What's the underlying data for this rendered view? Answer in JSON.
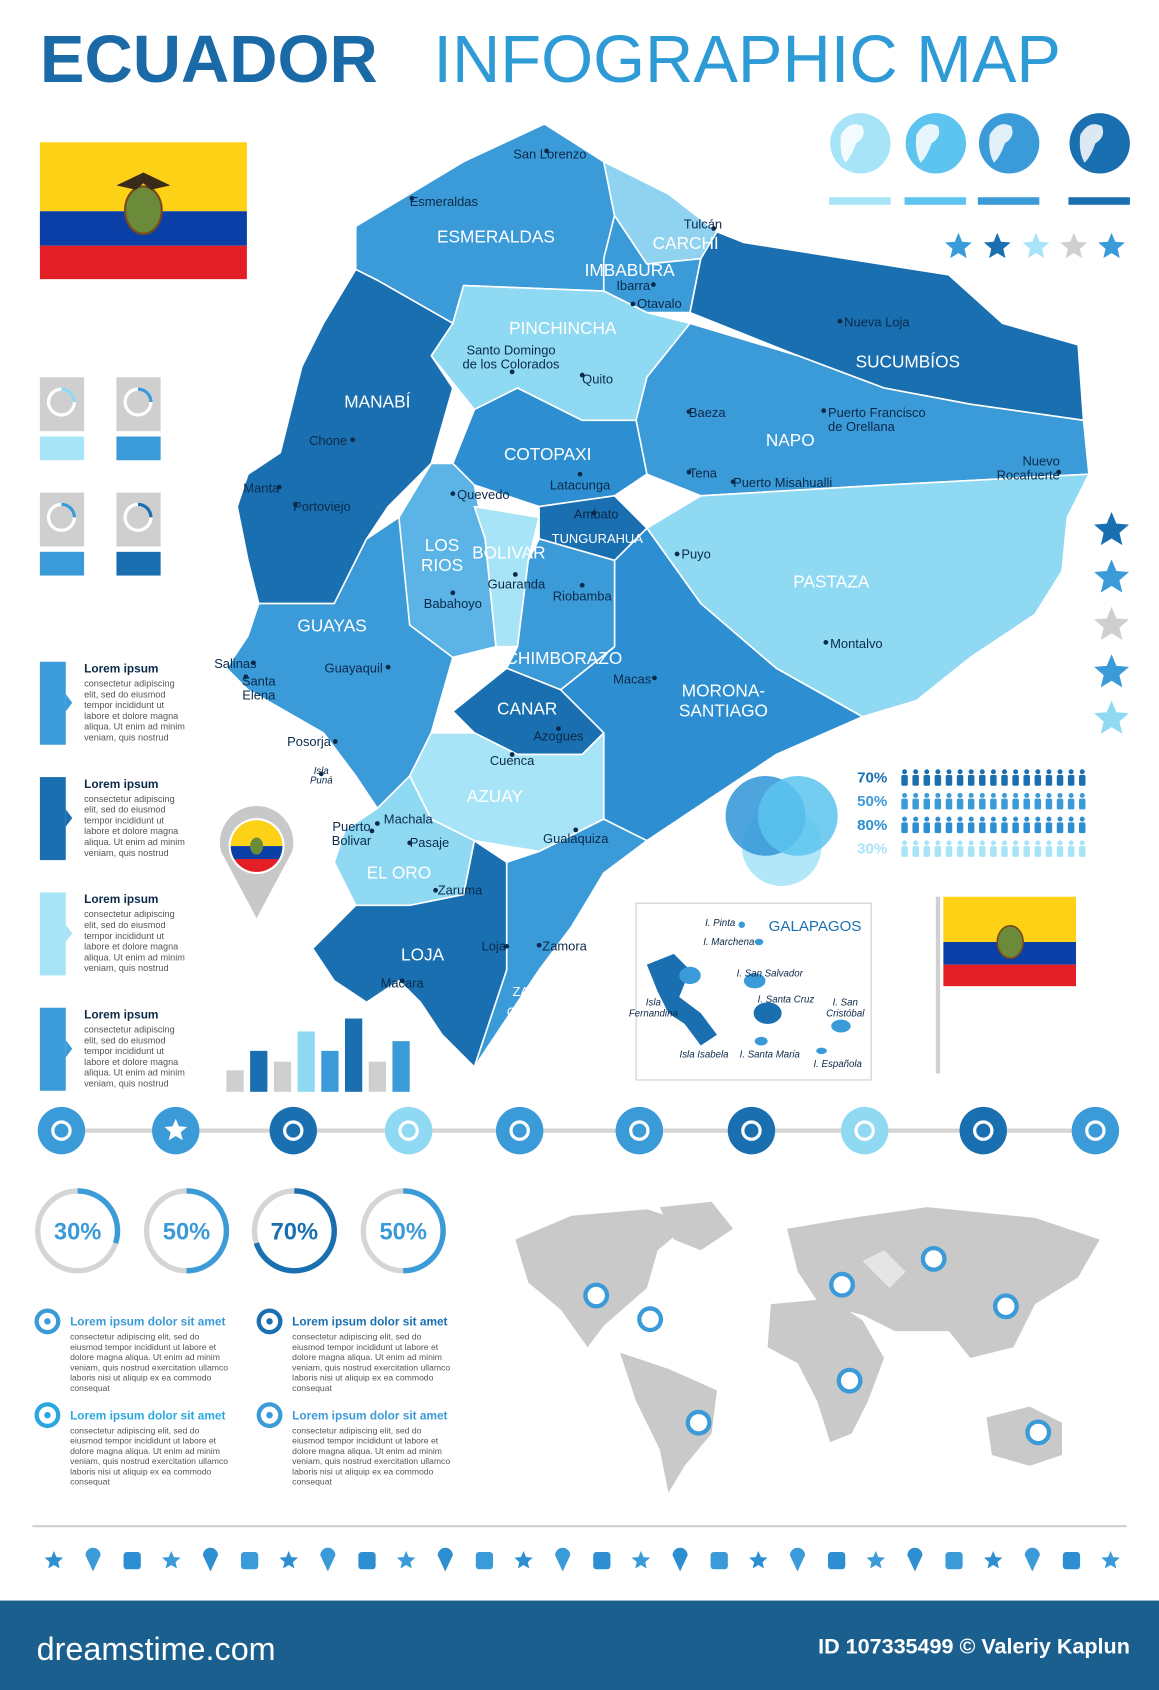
{
  "header": {
    "title_bold": "ECUADOR",
    "title_light": "INFOGRAPHIC MAP"
  },
  "map": {
    "provinces": [
      [
        "ESMERALDAS"
      ],
      [
        "CARCHI"
      ],
      [
        "IMBABURA"
      ],
      [
        "PINCHINCHA"
      ],
      [
        "SUCUMBÍOS"
      ],
      [
        "MANABÍ"
      ],
      [
        "NAPO"
      ],
      [
        "COTOPAXI"
      ],
      [
        "TUNGURAHUA"
      ],
      [
        "LOS",
        "RIOS"
      ],
      [
        "BOLIVAR"
      ],
      [
        "PASTAZA"
      ],
      [
        "GUAYAS"
      ],
      [
        "CHIMBORAZO"
      ],
      [
        "MORONA-",
        "SANTIAGO"
      ],
      [
        "CANAR"
      ],
      [
        "AZUAY"
      ],
      [
        "EL ORO"
      ],
      [
        "LOJA"
      ],
      [
        "ZAMORA-",
        "CHINCHIPE"
      ]
    ],
    "cities": [
      [
        "San Lorenzo"
      ],
      [
        "Esmeraldas"
      ],
      [
        "Tulcán"
      ],
      [
        "Ibarra"
      ],
      [
        "Otavalo"
      ],
      [
        "Nueva Loja"
      ],
      [
        "Santo Domingo",
        "de los Colorados"
      ],
      [
        "Quito"
      ],
      [
        "Baeza"
      ],
      [
        "Puerto Francisco",
        "de Orellana"
      ],
      [
        "Chone"
      ],
      [
        "Manta"
      ],
      [
        "Portoviejo"
      ],
      [
        "Latacunga"
      ],
      [
        "Quevedo"
      ],
      [
        "Tena"
      ],
      [
        "Puerto Misahualli"
      ],
      [
        "Nuevo",
        "Rocafuerte"
      ],
      [
        "Ambato"
      ],
      [
        "Puyo"
      ],
      [
        "Guaranda"
      ],
      [
        "Riobamba"
      ],
      [
        "Babahoyo"
      ],
      [
        "Montalvo"
      ],
      [
        "Salinas"
      ],
      [
        "Santa",
        "Elena"
      ],
      [
        "Guayaquil"
      ],
      [
        "Macas"
      ],
      [
        "Posorja"
      ],
      [
        "Azogues"
      ],
      [
        "Isla",
        "Puná"
      ],
      [
        "Cuenca"
      ],
      [
        "Machala"
      ],
      [
        "Puerto",
        "Bolivar"
      ],
      [
        "Pasaje"
      ],
      [
        "Gualaquiza"
      ],
      [
        "Zaruma"
      ],
      [
        "Zamora"
      ],
      [
        "Loja"
      ],
      [
        "Macara"
      ]
    ],
    "galapagos": {
      "title": "GALAPAGOS",
      "islands": [
        [
          "I. Pinta"
        ],
        [
          "I. Marchena"
        ],
        [
          "I. San Salvador"
        ],
        [
          "I. Santa Cruz"
        ],
        [
          "Isla",
          "Fernandina"
        ],
        [
          "I. San",
          "Cristóbal"
        ],
        [
          "Isla Isabela"
        ],
        [
          "I. Santa Maria"
        ],
        [
          "I. Española"
        ]
      ]
    }
  },
  "info_blocks": [
    {
      "title": "Lorem ipsum",
      "lines": [
        "consectetur adipiscing",
        "elit, sed do eiusmod",
        "tempor incididunt ut",
        "labore et dolore magna",
        "aliqua. Ut enim ad minim",
        "veniam, quis nostrud"
      ]
    },
    {
      "title": "Lorem ipsum",
      "lines": [
        "consectetur adipiscing",
        "elit, sed do eiusmod",
        "tempor incididunt ut",
        "labore et dolore magna",
        "aliqua. Ut enim ad minim",
        "veniam, quis nostrud"
      ]
    },
    {
      "title": "Lorem ipsum",
      "lines": [
        "consectetur adipiscing",
        "elit, sed do eiusmod",
        "tempor incididunt ut",
        "labore et dolore magna",
        "aliqua. Ut enim ad minim",
        "veniam, quis nostrud"
      ]
    },
    {
      "title": "Lorem ipsum",
      "lines": [
        "consectetur adipiscing",
        "elit, sed do eiusmod",
        "tempor incididunt ut",
        "labore et dolore magna",
        "aliqua. Ut enim ad minim",
        "veniam, quis nostrud"
      ]
    }
  ],
  "people_stats": [
    "70%",
    "50%",
    "80%",
    "30%"
  ],
  "rings": [
    {
      "label": "30%",
      "value": 30
    },
    {
      "label": "50%",
      "value": 50
    },
    {
      "label": "70%",
      "value": 70
    },
    {
      "label": "50%",
      "value": 50
    }
  ],
  "lorem_items": [
    {
      "title": "Lorem ipsum dolor sit amet",
      "lines": [
        "consectetur adipiscing elit, sed do",
        "eiusmod tempor incididunt ut labore et",
        "dolore magna aliqua. Ut enim ad minim",
        "veniam, quis nostrud exercitation ullamco",
        "laboris nisi ut aliquip ex ea commodo",
        "consequat"
      ]
    },
    {
      "title": "Lorem ipsum dolor sit amet",
      "lines": [
        "consectetur adipiscing elit, sed do",
        "eiusmod tempor incididunt ut labore et",
        "dolore magna aliqua. Ut enim ad minim",
        "veniam, quis nostrud exercitation ullamco",
        "laboris nisi ut aliquip ex ea commodo",
        "consequat"
      ]
    },
    {
      "title": "Lorem ipsum dolor sit amet",
      "lines": [
        "consectetur adipiscing elit, sed do",
        "eiusmod tempor incididunt ut labore et",
        "dolore magna aliqua. Ut enim ad minim",
        "veniam, quis nostrud exercitation ullamco",
        "laboris nisi ut aliquip ex ea commodo",
        "consequat"
      ]
    },
    {
      "title": "Lorem ipsum dolor sit amet",
      "lines": [
        "consectetur adipiscing elit, sed do",
        "eiusmod tempor incididunt ut labore et",
        "dolore magna aliqua. Ut enim ad minim",
        "veniam, quis nostrud exercitation ullamco",
        "laboris nisi ut aliquip ex ea commodo",
        "consequat"
      ]
    }
  ],
  "footer": {
    "brand": "dreamstime.com",
    "credit": "ID 107335499 © Valeriy Kaplun"
  }
}
